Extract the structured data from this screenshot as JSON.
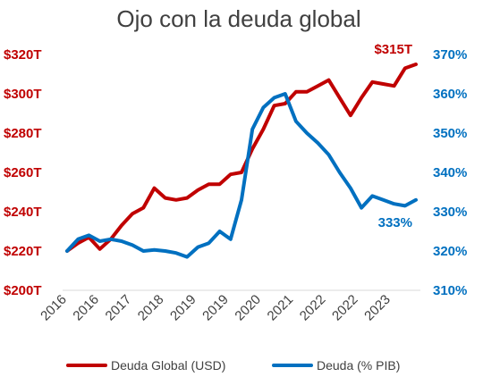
{
  "chart_data": {
    "type": "line",
    "title": "Ojo con la deuda global",
    "x_tick_labels": [
      "2016",
      "2016",
      "2017",
      "2018",
      "2019",
      "2019",
      "2020",
      "2021",
      "2022",
      "2022",
      "2023"
    ],
    "y_left": {
      "ticks": [
        "$200T",
        "$220T",
        "$240T",
        "$260T",
        "$280T",
        "$300T",
        "$320T"
      ],
      "min": 200,
      "max": 320
    },
    "y_right": {
      "ticks": [
        "310%",
        "320%",
        "330%",
        "340%",
        "350%",
        "360%",
        "370%"
      ],
      "min": 310,
      "max": 370
    },
    "series": [
      {
        "name": "Deuda Global (USD)",
        "axis": "left",
        "color": "#c00000",
        "values": [
          220,
          224,
          227,
          221,
          226,
          233,
          239,
          242,
          252,
          247,
          246,
          247,
          251,
          254,
          254,
          259,
          260,
          272,
          282,
          294,
          295,
          301,
          301,
          304,
          307,
          298,
          289,
          298,
          306,
          305,
          304,
          313,
          315
        ],
        "end_label": "$315T"
      },
      {
        "name": "Deuda (% PIB)",
        "axis": "right",
        "color": "#0070c0",
        "values": [
          320,
          323,
          324,
          322.5,
          323,
          322.5,
          321.5,
          320,
          320.3,
          320,
          319.5,
          318.5,
          321,
          322,
          325,
          323,
          333,
          351,
          356.5,
          359,
          360,
          353,
          350,
          347.5,
          344.5,
          340,
          336,
          331,
          334,
          333,
          332,
          331.5,
          333
        ],
        "end_label": "333%"
      }
    ],
    "legend_position": "bottom",
    "grid": false
  }
}
